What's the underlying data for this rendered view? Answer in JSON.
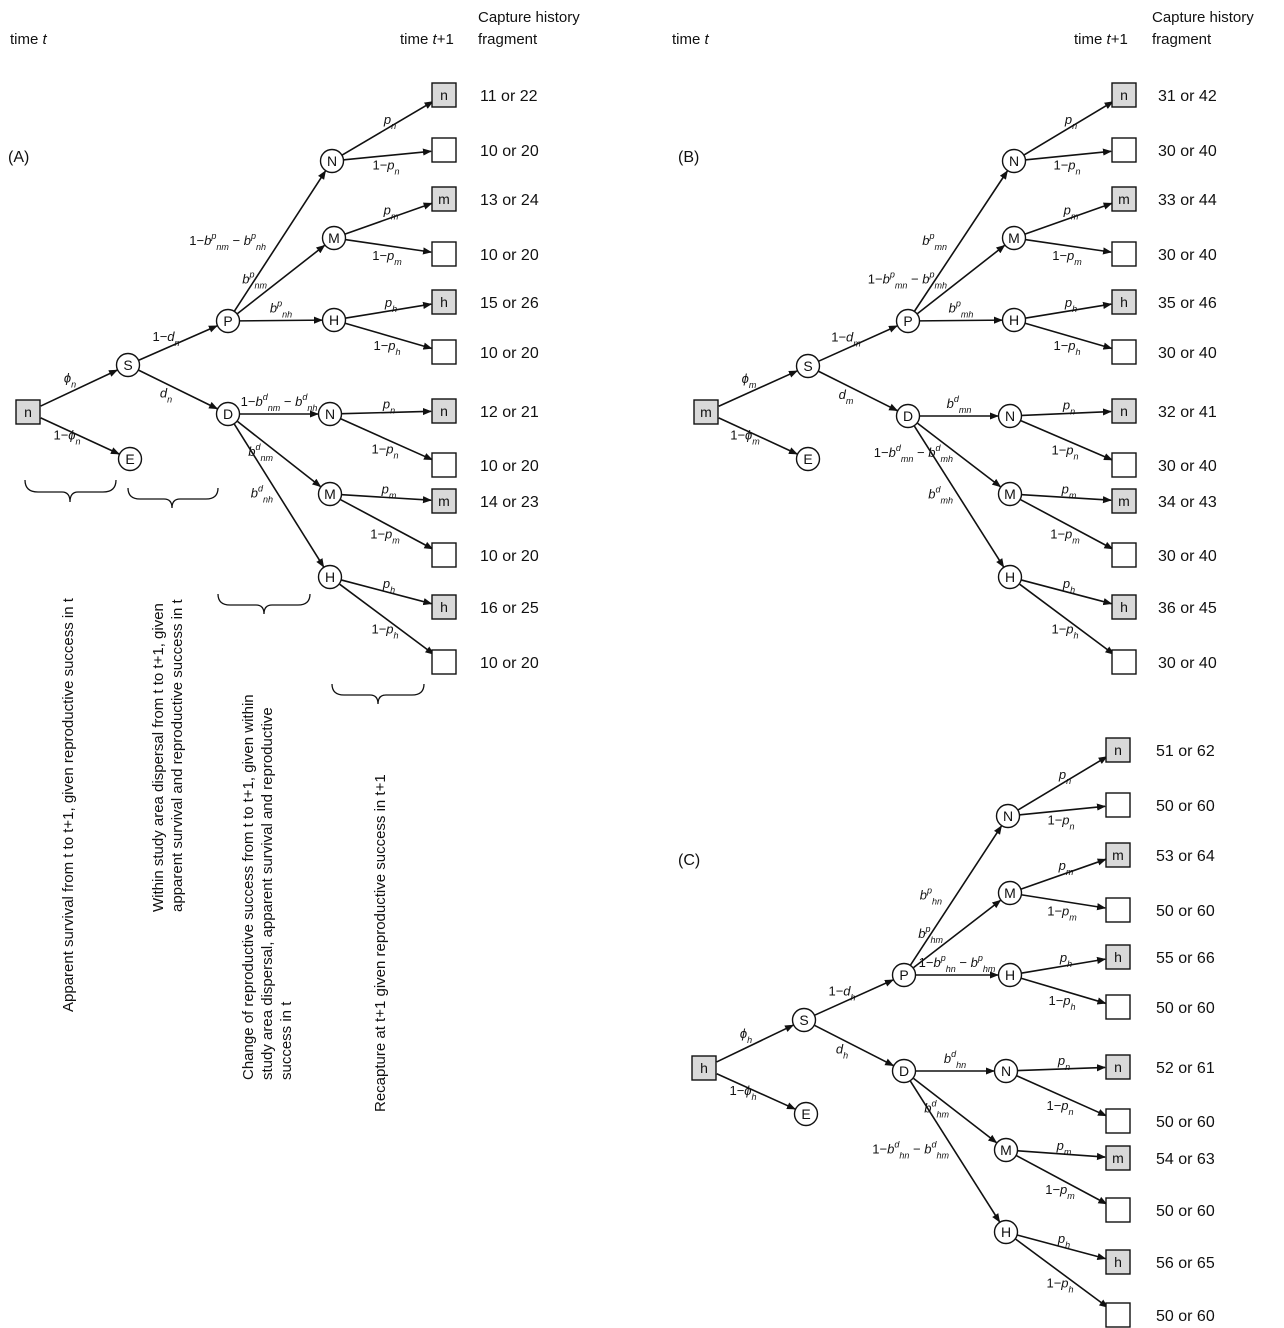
{
  "headers": {
    "time_t": "time",
    "time_t_var": "t",
    "time_t1": "time",
    "time_t1_var": "t",
    "time_t1_suffix": "+1",
    "capture_line1": "Capture history",
    "capture_line2": "fragment"
  },
  "panels": [
    {
      "id": "A",
      "label": "(A)",
      "start_state": "n",
      "edge_labels": {
        "phi": "ϕ_n",
        "one_minus_phi": "1−ϕ_n",
        "one_minus_d": "1−d_n",
        "d": "d_n",
        "p_b1": "1−b^p_nm − b^p_nh",
        "p_b2": "b^p_nm",
        "p_b3": "b^p_nh",
        "d_b1": "1−b^d_nm − b^d_nh",
        "d_b2": "b^d_nm",
        "d_b3": "b^d_nh"
      },
      "fragments": [
        "11 or 22",
        "10 or 20",
        "13 or 24",
        "10 or 20",
        "15 or 26",
        "10 or 20",
        "12 or 21",
        "10 or 20",
        "14 or 23",
        "10 or 20",
        "16 or 25",
        "10 or 20"
      ]
    },
    {
      "id": "B",
      "label": "(B)",
      "start_state": "m",
      "edge_labels": {
        "phi": "ϕ_m",
        "one_minus_phi": "1−ϕ_m",
        "one_minus_d": "1−d_m",
        "d": "d_m",
        "p_b1": "b^p_mn",
        "p_b2": "1−b^p_mn − b^p_mh",
        "p_b3": "b^p_mh",
        "d_b1": "b^d_mn",
        "d_b2": "1−b^d_mn − b^d_mh",
        "d_b3": "b^d_mh"
      },
      "fragments": [
        "31 or 42",
        "30 or 40",
        "33 or 44",
        "30 or 40",
        "35 or 46",
        "30 or 40",
        "32 or 41",
        "30 or 40",
        "34 or 43",
        "30 or 40",
        "36 or 45",
        "30 or 40"
      ]
    },
    {
      "id": "C",
      "label": "(C)",
      "start_state": "h",
      "edge_labels": {
        "phi": "ϕ_h",
        "one_minus_phi": "1−ϕ_h",
        "one_minus_d": "1−d_h",
        "d": "d_h",
        "p_b1": "b^p_hn",
        "p_b2": "b^p_hm",
        "p_b3": "1−b^p_hn − b^p_hm",
        "d_b1": "b^d_hn",
        "d_b2": "b^d_hm",
        "d_b3": "1−b^d_hn − b^d_hm"
      },
      "fragments": [
        "51 or 62",
        "50 or 60",
        "53 or 64",
        "50 or 60",
        "55 or 66",
        "50 or 60",
        "52 or 61",
        "50 or 60",
        "54 or 63",
        "50 or 60",
        "56 or 65",
        "50 or 60"
      ]
    }
  ],
  "recapture_labels": {
    "n": "p_n",
    "not_n": "1−p_n",
    "m": "p_m",
    "not_m": "1−p_m",
    "h": "p_h",
    "not_h": "1−p_h"
  },
  "node_letters": {
    "survive": "S",
    "emigrate": "E",
    "philopatric": "P",
    "disperse": "D",
    "none": "N",
    "medium": "M",
    "high": "H",
    "box_n": "n",
    "box_m": "m",
    "box_h": "h"
  },
  "captions": [
    [
      "Apparent survival from t to t+1, given reproductive success in t"
    ],
    [
      "Within study area dispersal from t to t+1, given",
      "apparent survival and reproductive success in t"
    ],
    [
      "Change of reproductive success from t to t+1, given within",
      "study area dispersal, apparent survival and reproductive",
      "success in t"
    ],
    [
      "Recapture at t+1 given reproductive success in t+1"
    ]
  ],
  "colors": {
    "ink": "#111111",
    "box_fill_recaptured": "#d9d9d9",
    "box_fill_empty": "#ffffff"
  }
}
